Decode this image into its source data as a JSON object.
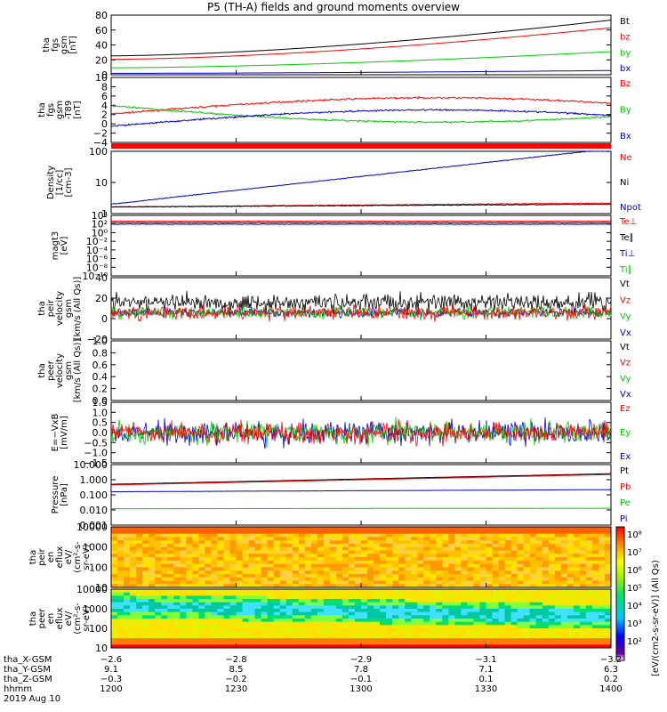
{
  "title": "P5 (TH-A) fields and ground moments overview",
  "colors": {
    "black": "#000000",
    "red": "#ff0000",
    "green": "#00cc00",
    "blue": "#0000cc"
  },
  "chart_data": [
    {
      "type": "line",
      "panel": "fgs_gsm",
      "ylabel": [
        "tha",
        "fgs",
        "gsm",
        "[nT]"
      ],
      "yticks": [
        "80",
        "60",
        "40",
        "20",
        "0"
      ],
      "ylim": [
        0,
        85
      ],
      "series": [
        {
          "name": "Bt",
          "color": "black",
          "start": 27,
          "end": 78
        },
        {
          "name": "bz",
          "color": "red",
          "start": 22,
          "end": 67
        },
        {
          "name": "by",
          "color": "green",
          "start": 10,
          "end": 33
        },
        {
          "name": "bx",
          "color": "blue",
          "start": 2,
          "end": 6
        }
      ]
    },
    {
      "type": "line",
      "panel": "fgs_gsm_detrended",
      "ylabel": [
        "tha",
        "fgs",
        "gsm",
        "-T89",
        "[nT]"
      ],
      "yticks": [
        "10",
        "8",
        "6",
        "4",
        "2",
        "0",
        "−2",
        "−4"
      ],
      "ylim": [
        -5.5,
        10.5
      ],
      "series": [
        {
          "name": "Bz",
          "color": "red",
          "start": 1.5,
          "end": 5.5
        },
        {
          "name": "By",
          "color": "green",
          "start": 3.5,
          "end": -0.5
        },
        {
          "name": "Bx",
          "color": "blue",
          "start": -1.5,
          "end": 2.5
        }
      ]
    },
    {
      "type": "line",
      "panel": "density",
      "ylabel": [
        "Density",
        "[1/cc]",
        "[cm-3]"
      ],
      "yticks": [
        "100",
        "10",
        "1"
      ],
      "ylim": [
        0.3,
        200
      ],
      "yscale": "log",
      "series": [
        {
          "name": "Ne",
          "color": "red",
          "start": 0.6,
          "end": 0.9
        },
        {
          "name": "Ni",
          "color": "black",
          "start": 0.6,
          "end": 0.8
        },
        {
          "name": "Npot",
          "color": "blue",
          "start": 0.8,
          "end": 200
        }
      ]
    },
    {
      "type": "line",
      "panel": "temperature",
      "ylabel": [
        "magt3",
        "[eV]"
      ],
      "yticks": [
        "10⁴",
        "10²",
        "10⁰",
        "10⁻²",
        "10⁻⁴",
        "10⁻⁶",
        "10⁻⁸",
        "10⁻¹⁰"
      ],
      "legend": [
        "Te⊥",
        "Te∥",
        "Ti⊥",
        "Ti∥"
      ]
    },
    {
      "type": "line",
      "panel": "peir_velocity",
      "ylabel": [
        "tha",
        "peir",
        "velocity",
        "gsm",
        "[km/s (All Qs)]"
      ],
      "yticks": [
        "40",
        "20",
        "0",
        "−20"
      ],
      "ylim": [
        -32,
        42
      ],
      "series": [
        {
          "name": "Vt",
          "color": "black"
        },
        {
          "name": "Vz",
          "color": "red"
        },
        {
          "name": "Vy",
          "color": "green"
        },
        {
          "name": "Vx",
          "color": "blue"
        }
      ]
    },
    {
      "type": "line",
      "panel": "peer_velocity",
      "ylabel": [
        "tha",
        "peer",
        "velocity",
        "gsm",
        "[km/s (All Qs)]"
      ],
      "yticks": [
        "1.0",
        "0.8",
        "0.6",
        "0.4",
        "0.2",
        "0.0"
      ],
      "ylim": [
        0,
        1
      ],
      "series": [
        {
          "name": "Vt",
          "color": "black"
        },
        {
          "name": "Vz",
          "color": "red"
        },
        {
          "name": "Vy",
          "color": "green"
        },
        {
          "name": "Vx",
          "color": "blue"
        }
      ]
    },
    {
      "type": "line",
      "panel": "efield",
      "ylabel": [
        "E=−VxB",
        "[mV/m]"
      ],
      "yticks": [
        "1.5",
        "1.0",
        "0.5",
        "0.0",
        "−0.5",
        "−1.0",
        "−1.5"
      ],
      "ylim": [
        -1.5,
        1.5
      ],
      "series": [
        {
          "name": "Ez",
          "color": "red"
        },
        {
          "name": "Ey",
          "color": "green"
        },
        {
          "name": "Ex",
          "color": "blue"
        }
      ]
    },
    {
      "type": "line",
      "panel": "pressure",
      "ylabel": [
        "Pressure",
        "[nPa]"
      ],
      "yticks": [
        "10.000",
        "1.000",
        "0.100",
        "0.010",
        "0.001"
      ],
      "ylim": [
        0.001,
        10
      ],
      "yscale": "log",
      "series": [
        {
          "name": "Pt",
          "color": "black",
          "start": 0.5,
          "end": 2.5
        },
        {
          "name": "Pb",
          "color": "red",
          "start": 0.45,
          "end": 2.2
        },
        {
          "name": "Pe",
          "color": "green",
          "start": 0.012,
          "end": 0.013
        },
        {
          "name": "Pi",
          "color": "blue",
          "start": 0.16,
          "end": 0.22
        }
      ]
    },
    {
      "type": "heatmap",
      "panel": "peir_en_eflux",
      "ylabel": [
        "tha",
        "peir",
        "en",
        "eflux",
        "eV/",
        "(cm²-s-",
        "sr-eV)"
      ],
      "yticks": [
        "10000",
        "1000",
        "100",
        "10"
      ]
    },
    {
      "type": "heatmap",
      "panel": "peer_en_eflux",
      "ylabel": [
        "tha",
        "peer",
        "en",
        "eflux",
        "eV/",
        "(cm²-s-",
        "sr-eV)"
      ],
      "yticks": [
        "10000",
        "1000",
        "100",
        "10"
      ]
    }
  ],
  "colorbar": {
    "label": "[eV/(cm2-s-sr-eV)] (All Qs)",
    "ticks": [
      "10⁸",
      "10⁷",
      "10⁶",
      "10⁵",
      "10⁴",
      "10³",
      "10²"
    ]
  },
  "xaxis": {
    "labels": [
      "tha_X-GSM",
      "tha_Y-GSM",
      "tha_Z-GSM",
      "hhmm",
      "2019 Aug 10"
    ],
    "columns": [
      [
        "−2.6",
        "9.1",
        "−0.3",
        "1200"
      ],
      [
        "−2.8",
        "8.5",
        "−0.2",
        "1230"
      ],
      [
        "−2.9",
        "7.8",
        "−0.1",
        "1300"
      ],
      [
        "−3.1",
        "7.1",
        "0.1",
        "1330"
      ],
      [
        "−3.2",
        "6.3",
        "0.2",
        "1400"
      ]
    ]
  }
}
